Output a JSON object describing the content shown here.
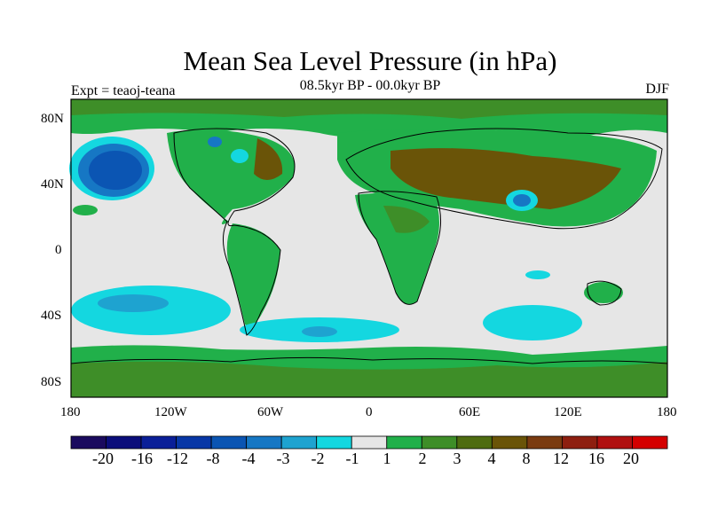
{
  "title": "Mean Sea Level Pressure (in hPa)",
  "experiment_label": "Expt = teaoj-teana",
  "period_label": "08.5kyr BP - 00.0kyr BP",
  "season_label": "DJF",
  "lat_ticks": [
    "80N",
    "40N",
    "0",
    "40S",
    "80S"
  ],
  "lon_ticks": [
    "180",
    "120W",
    "60W",
    "0",
    "60E",
    "120E",
    "180"
  ],
  "colorbar": {
    "colors": [
      "#1a0a5e",
      "#0b0d7a",
      "#0a1f98",
      "#0837a6",
      "#0b55b3",
      "#1677c4",
      "#1ea3d0",
      "#14d7e0",
      "#e6e6e6",
      "#21b04a",
      "#3e8e28",
      "#4e6c10",
      "#6a5408",
      "#7a3b10",
      "#8e1f10",
      "#b01010",
      "#d40000"
    ],
    "labels": [
      "-20",
      "-16",
      "-12",
      "-8",
      "-4",
      "-3",
      "-2",
      "-1",
      "1",
      "2",
      "3",
      "4",
      "8",
      "12",
      "16",
      "20"
    ]
  },
  "map_colors": {
    "neutral": "#e6e6e6",
    "green": "#21b04a",
    "darkgreen": "#3e8e28",
    "olive": "#4e6c10",
    "brown": "#6a5408",
    "cyan": "#14d7e0",
    "blue": "#1677c4",
    "navy": "#0b55b3"
  }
}
